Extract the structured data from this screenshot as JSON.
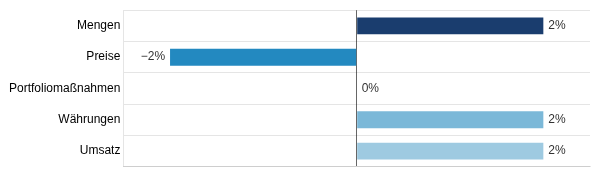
{
  "chart_data": {
    "type": "bar",
    "orientation": "horizontal",
    "categories": [
      "Mengen",
      "Preise",
      "Portfoliomaßnahmen",
      "Währungen",
      "Umsatz"
    ],
    "values": [
      2,
      -2,
      0,
      2,
      2
    ],
    "value_labels": [
      "2%",
      "−2%",
      "0%",
      "2%",
      "2%"
    ],
    "colors": [
      "#1a3d6e",
      "#2389c0",
      "#ffffff",
      "#7bb8d8",
      "#9ecae1"
    ],
    "xlim": [
      -2.5,
      2.5
    ],
    "xticks": [
      0
    ],
    "grid": true,
    "data_labels": true,
    "tick_labels": "y"
  }
}
